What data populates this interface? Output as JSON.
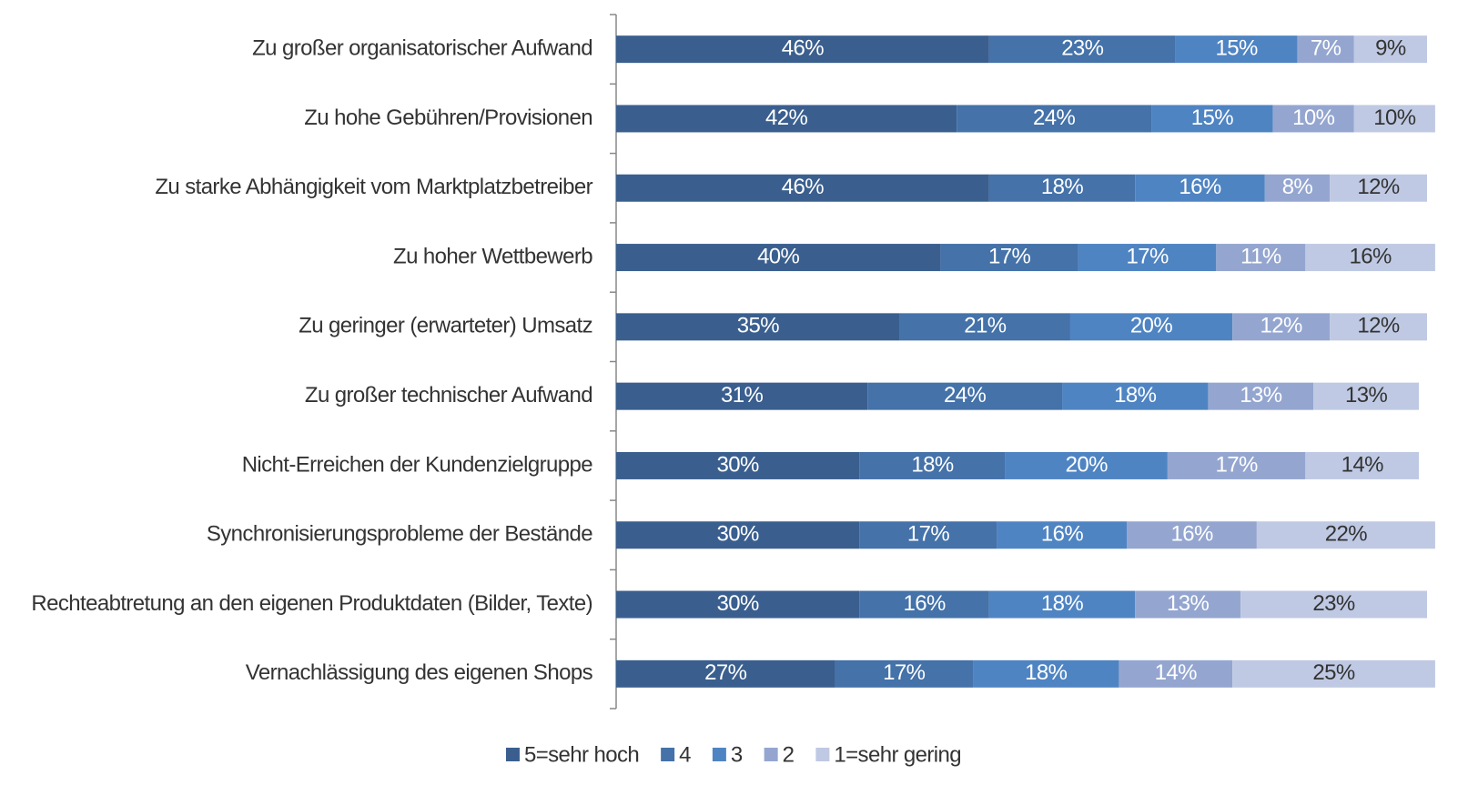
{
  "chart_data": {
    "type": "stacked-bar-horizontal",
    "categories": [
      "Zu großer organisatorischer Aufwand",
      "Zu hohe Gebühren/Provisionen",
      "Zu starke Abhängigkeit vom Marktplatzbetreiber",
      "Zu hoher Wettbewerb",
      "Zu geringer (erwarteter) Umsatz",
      "Zu großer technischer Aufwand",
      "Nicht-Erreichen der Kundenzielgruppe",
      "Synchronisierungsprobleme der Bestände",
      "Rechteabtretung an den eigenen Produktdaten (Bilder, Texte)",
      "Vernachlässigung des eigenen Shops"
    ],
    "series": [
      {
        "name": "5=sehr hoch",
        "color": "#3a5f8f",
        "values": [
          46,
          42,
          46,
          40,
          35,
          31,
          30,
          30,
          30,
          27
        ],
        "value_labels": [
          "46%",
          "42%",
          "46%",
          "40%",
          "35%",
          "31%",
          "30%",
          "30%",
          "30%",
          "27%"
        ]
      },
      {
        "name": "4",
        "color": "#4472a9",
        "values": [
          23,
          24,
          18,
          17,
          21,
          24,
          18,
          17,
          16,
          17
        ],
        "value_labels": [
          "23%",
          "24%",
          "18%",
          "17%",
          "21%",
          "24%",
          "18%",
          "17%",
          "16%",
          "17%"
        ]
      },
      {
        "name": "3",
        "color": "#4f84c3",
        "values": [
          15,
          15,
          16,
          17,
          20,
          18,
          20,
          16,
          18,
          18
        ],
        "value_labels": [
          "15%",
          "15%",
          "16%",
          "17%",
          "20%",
          "18%",
          "20%",
          "16%",
          "18%",
          "18%"
        ]
      },
      {
        "name": "2",
        "color": "#94a6d0",
        "values": [
          7,
          10,
          8,
          11,
          12,
          13,
          17,
          16,
          13,
          14
        ],
        "value_labels": [
          "7%",
          "10%",
          "8%",
          "11%",
          "12%",
          "13%",
          "17%",
          "16%",
          "13%",
          "14%"
        ]
      },
      {
        "name": "1=sehr gering",
        "color": "#bfc9e3",
        "values": [
          9,
          10,
          12,
          16,
          12,
          13,
          14,
          22,
          23,
          25
        ],
        "value_labels": [
          "9%",
          "10%",
          "12%",
          "16%",
          "12%",
          "13%",
          "14%",
          "22%",
          "23%",
          "25%"
        ]
      }
    ],
    "xlim": [
      0,
      100
    ],
    "legend": "bottom"
  }
}
